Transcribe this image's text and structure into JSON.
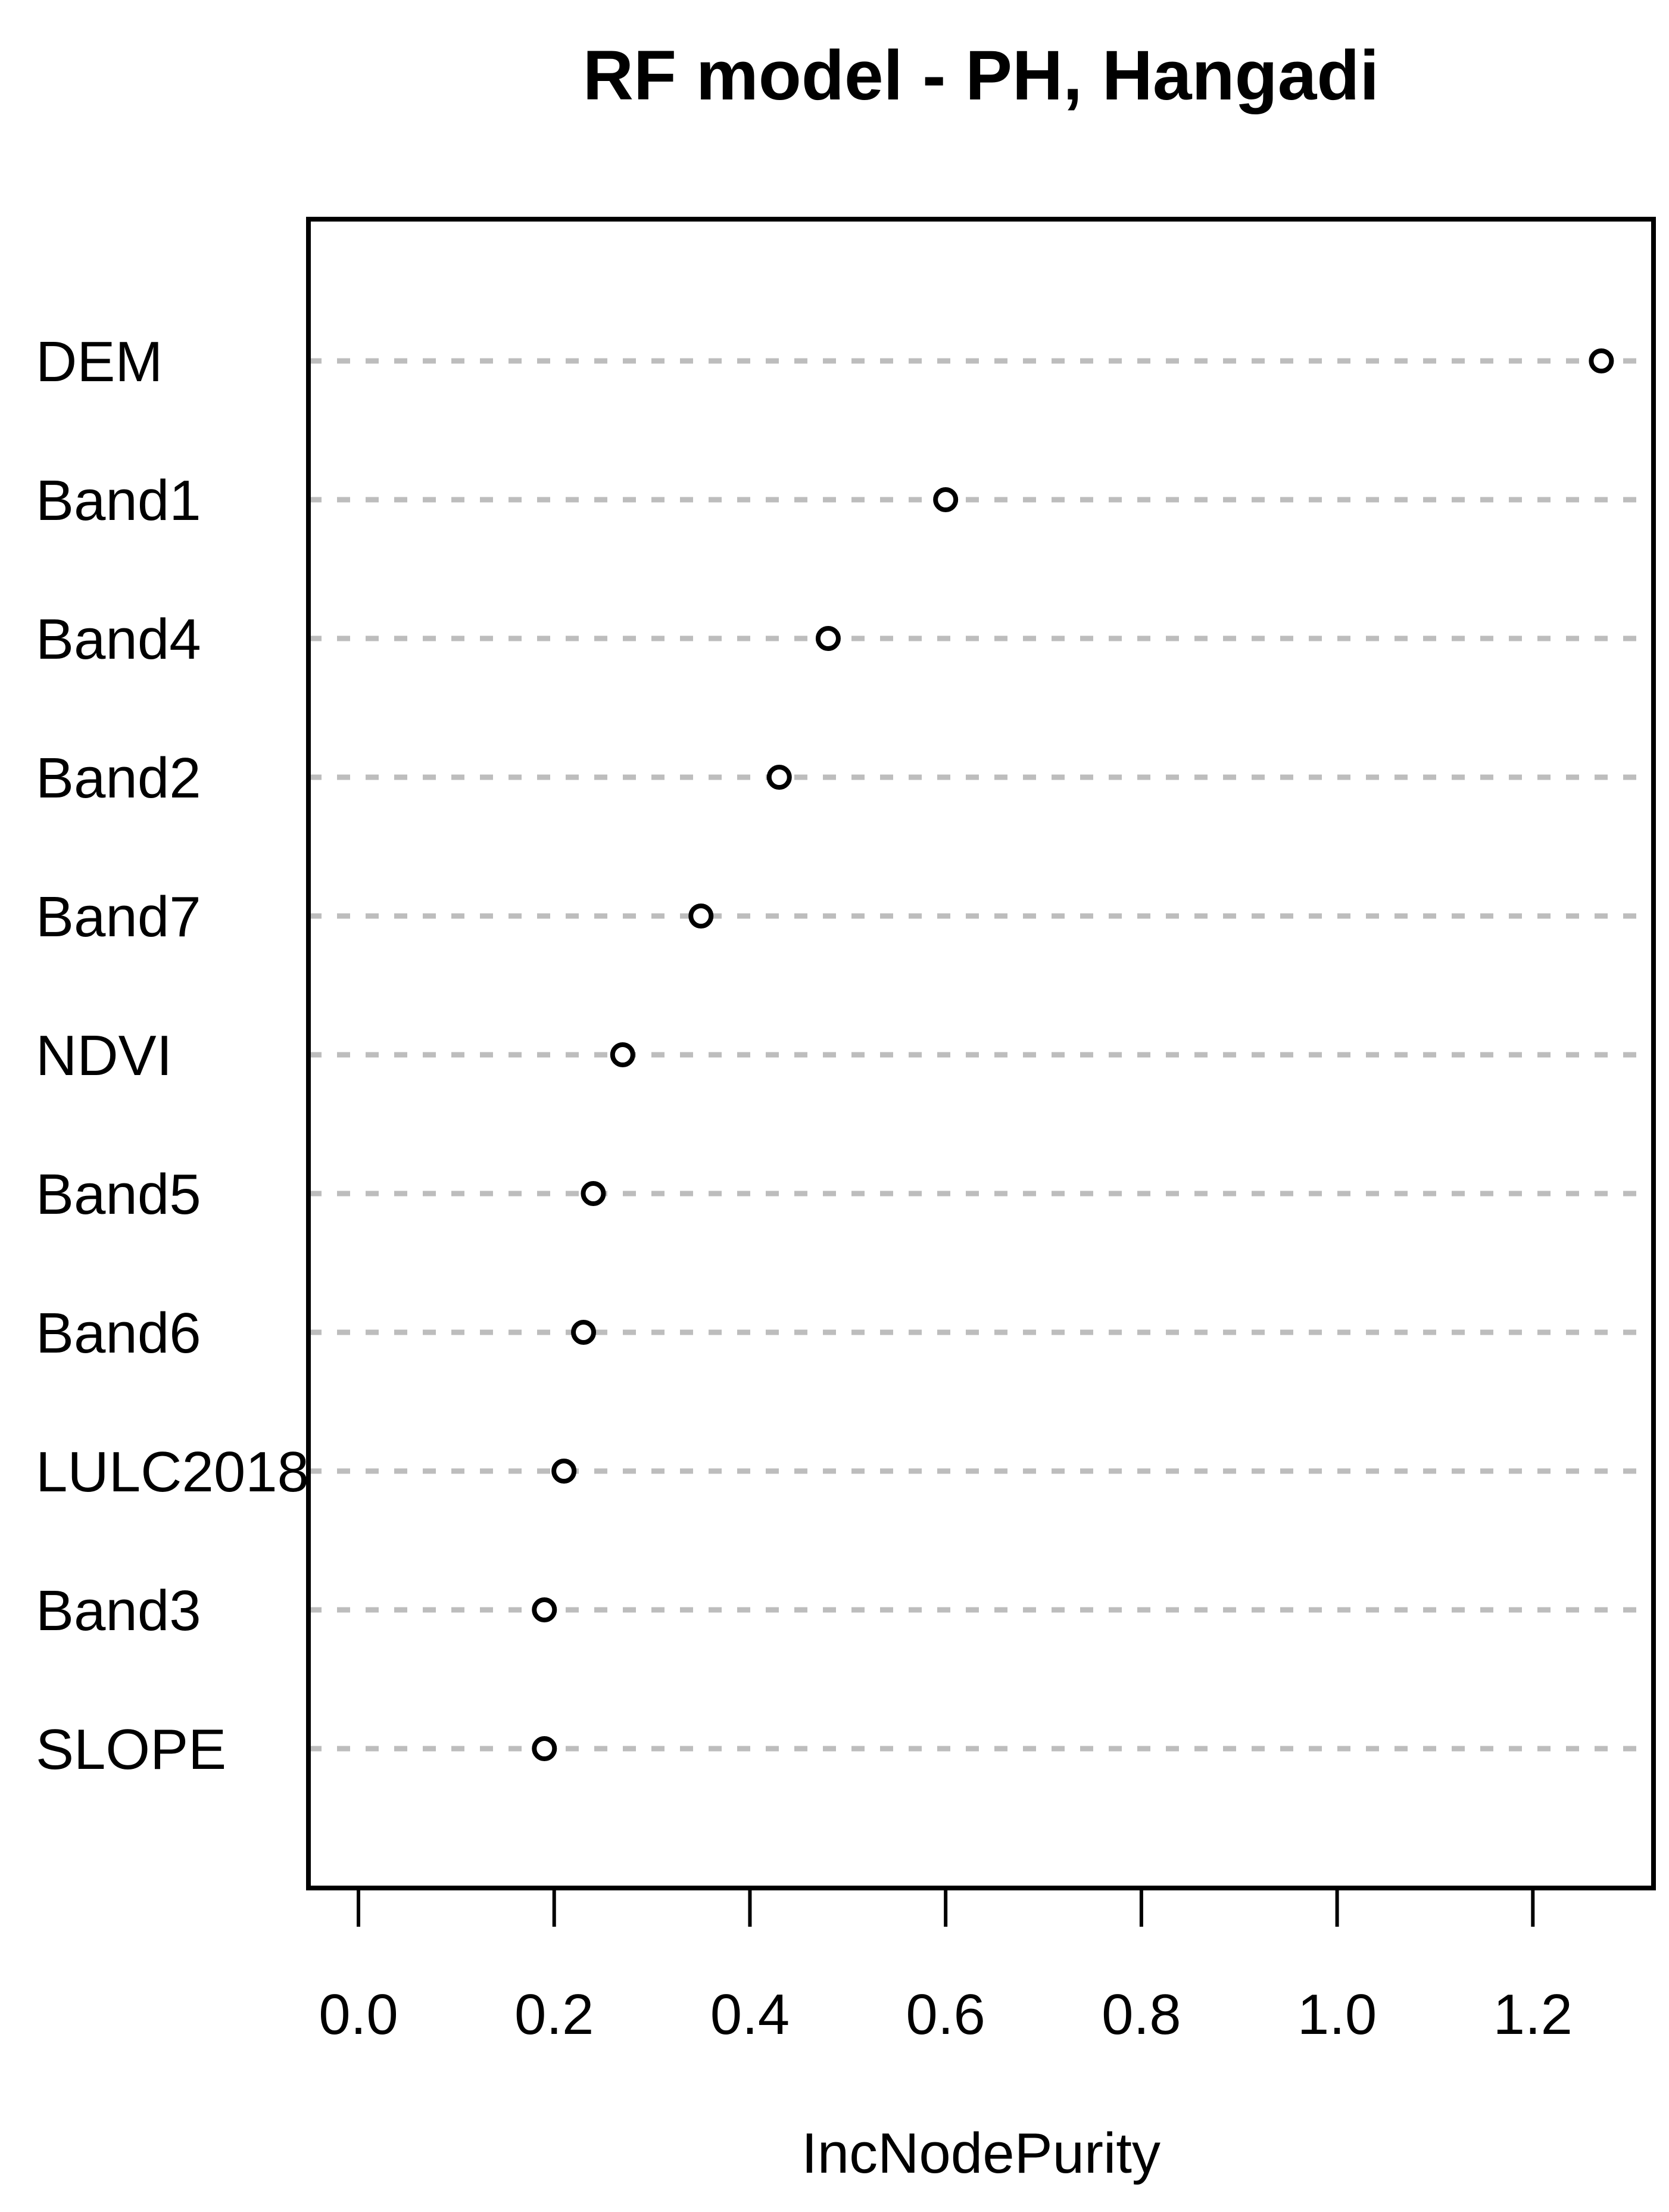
{
  "chart_data": {
    "type": "scatter",
    "subtype": "dotchart-variable-importance",
    "title": "RF model - PH, Hangadi",
    "xlabel": "IncNodePurity",
    "ylabel": "",
    "categories_top_to_bottom": [
      "DEM",
      "Band1",
      "Band4",
      "Band2",
      "Band7",
      "NDVI",
      "Band5",
      "Band6",
      "LULC2018",
      "Band3",
      "SLOPE"
    ],
    "values_top_to_bottom": [
      1.27,
      0.6,
      0.48,
      0.43,
      0.35,
      0.27,
      0.24,
      0.23,
      0.21,
      0.19,
      0.19
    ],
    "x_ticks": [
      0.0,
      0.2,
      0.4,
      0.6,
      0.8,
      1.0,
      1.2
    ],
    "x_tick_labels": [
      "0.0",
      "0.2",
      "0.4",
      "0.6",
      "0.8",
      "1.0",
      "1.2"
    ],
    "xlim": [
      -0.05,
      1.32
    ],
    "grid": "horizontal-dotted",
    "legend": "none",
    "marker": "open-circle"
  },
  "colors": {
    "background": "#ffffff",
    "box_and_text": "#000000",
    "gridline": "#bdbdbd",
    "marker_stroke": "#000000",
    "marker_fill": "#ffffff"
  }
}
